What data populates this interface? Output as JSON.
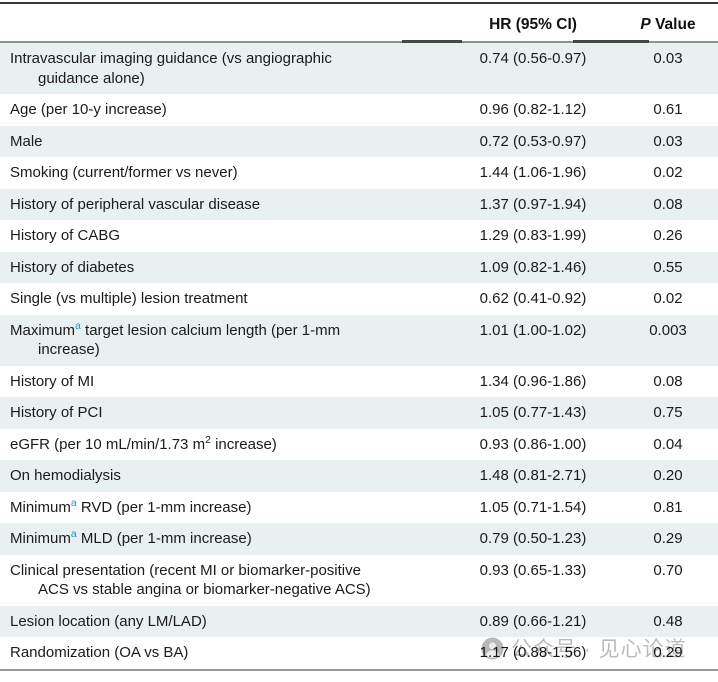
{
  "table": {
    "header": {
      "col1": "",
      "hr": "HR (95% CI)",
      "p_italic": "P",
      "p_rest": "Value"
    },
    "rows": [
      {
        "label": [
          {
            "text": "Intravascular imaging guidance (vs angiographic"
          },
          {
            "break": true
          },
          {
            "text": "guidance alone)"
          }
        ],
        "hr": "0.74 (0.56-0.97)",
        "p": "0.03"
      },
      {
        "label": [
          {
            "text": "Age (per 10-y increase)"
          }
        ],
        "hr": "0.96 (0.82-1.12)",
        "p": "0.61"
      },
      {
        "label": [
          {
            "text": "Male"
          }
        ],
        "hr": "0.72 (0.53-0.97)",
        "p": "0.03"
      },
      {
        "label": [
          {
            "text": "Smoking (current/former vs never)"
          }
        ],
        "hr": "1.44 (1.06-1.96)",
        "p": "0.02"
      },
      {
        "label": [
          {
            "text": "History of peripheral vascular disease"
          }
        ],
        "hr": "1.37 (0.97-1.94)",
        "p": "0.08"
      },
      {
        "label": [
          {
            "text": "History of CABG"
          }
        ],
        "hr": "1.29 (0.83-1.99)",
        "p": "0.26"
      },
      {
        "label": [
          {
            "text": "History of diabetes"
          }
        ],
        "hr": "1.09 (0.82-1.46)",
        "p": "0.55"
      },
      {
        "label": [
          {
            "text": "Single (vs multiple) lesion treatment"
          }
        ],
        "hr": "0.62 (0.41-0.92)",
        "p": "0.02"
      },
      {
        "label": [
          {
            "text": "Maximum"
          },
          {
            "text": "a",
            "sup": true,
            "accent": true
          },
          {
            "text": " target lesion calcium length (per 1-mm"
          },
          {
            "break": true
          },
          {
            "text": "increase)"
          }
        ],
        "hr": "1.01 (1.00-1.02)",
        "p": "0.003"
      },
      {
        "label": [
          {
            "text": "History of MI"
          }
        ],
        "hr": "1.34 (0.96-1.86)",
        "p": "0.08"
      },
      {
        "label": [
          {
            "text": "History of PCI"
          }
        ],
        "hr": "1.05 (0.77-1.43)",
        "p": "0.75"
      },
      {
        "label": [
          {
            "text": "eGFR (per 10 mL/min/1.73 m"
          },
          {
            "text": "2",
            "sup": true,
            "accent": false
          },
          {
            "text": " increase)"
          }
        ],
        "hr": "0.93 (0.86-1.00)",
        "p": "0.04"
      },
      {
        "label": [
          {
            "text": "On hemodialysis"
          }
        ],
        "hr": "1.48 (0.81-2.71)",
        "p": "0.20"
      },
      {
        "label": [
          {
            "text": "Minimum"
          },
          {
            "text": "a",
            "sup": true,
            "accent": true
          },
          {
            "text": " RVD (per 1-mm increase)"
          }
        ],
        "hr": "1.05 (0.71-1.54)",
        "p": "0.81"
      },
      {
        "label": [
          {
            "text": "Minimum"
          },
          {
            "text": "a",
            "sup": true,
            "accent": true
          },
          {
            "text": " MLD (per 1-mm increase)"
          }
        ],
        "hr": "0.79 (0.50-1.23)",
        "p": "0.29"
      },
      {
        "label": [
          {
            "text": "Clinical presentation (recent MI or biomarker-positive"
          },
          {
            "break": true
          },
          {
            "text": "ACS vs stable angina or biomarker-negative ACS)"
          }
        ],
        "hr": "0.93 (0.65-1.33)",
        "p": "0.70"
      },
      {
        "label": [
          {
            "text": "Lesion location (any LM/LAD)"
          }
        ],
        "hr": "0.89 (0.66-1.21)",
        "p": "0.48"
      },
      {
        "label": [
          {
            "text": "Randomization (OA vs BA)"
          }
        ],
        "hr": "1.17 (0.88-1.56)",
        "p": "0.29"
      }
    ]
  },
  "watermark": {
    "text": "公众号 · 见心论道",
    "logo": "person-silhouette"
  },
  "colors": {
    "stripe": "#e8f0f1",
    "footnote_accent": "#2494c9",
    "header_rule": "#909090",
    "top_rule": "#383838",
    "bottom_rule": "#9a9a9a",
    "text": "#1b1b1b",
    "watermark": "#ababab"
  }
}
